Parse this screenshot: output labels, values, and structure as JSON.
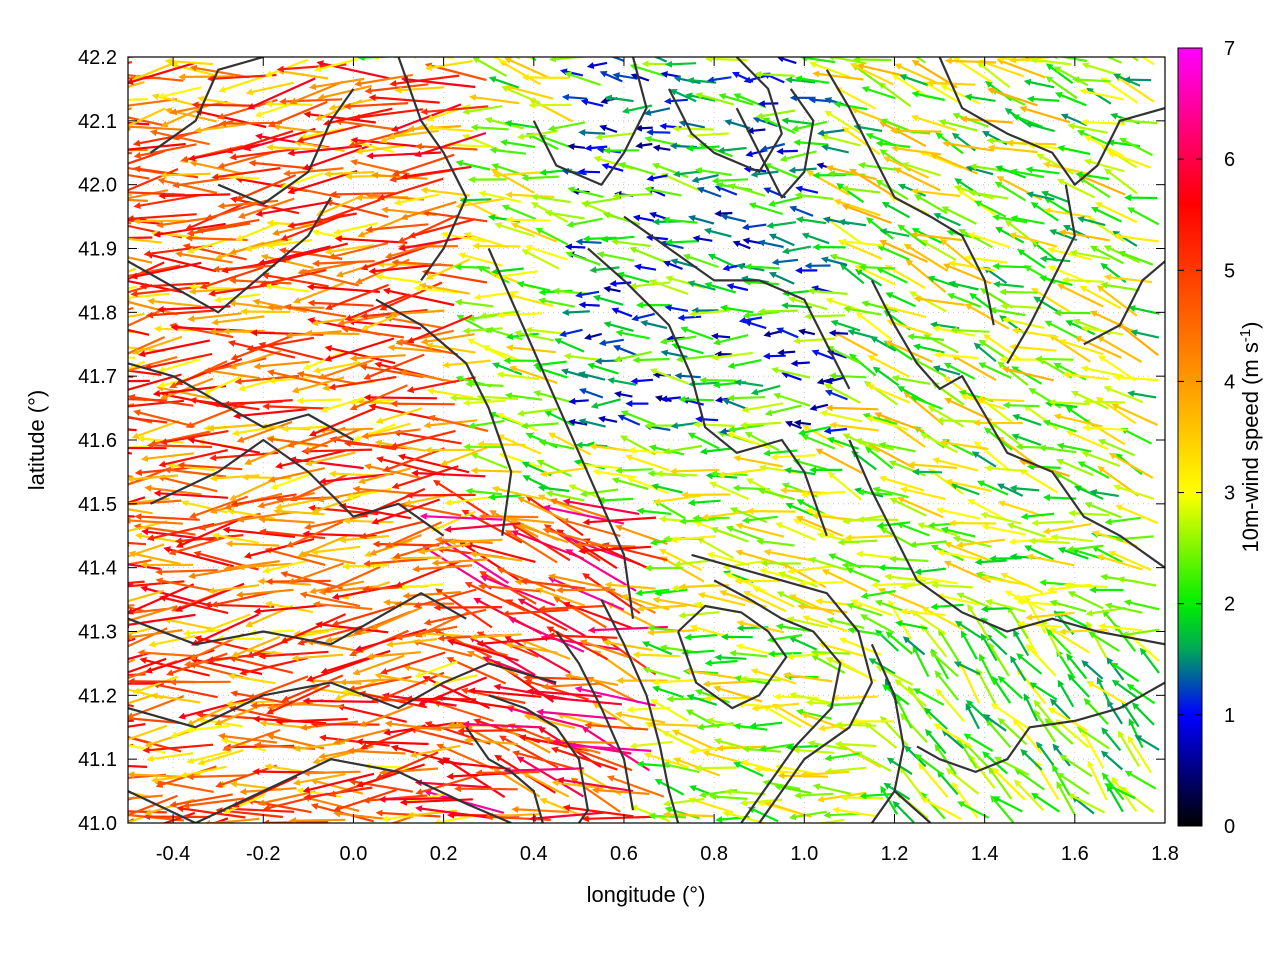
{
  "chart_data": {
    "type": "vector-field",
    "title": "",
    "xlabel": "longitude (°)",
    "ylabel": "latitude (°)",
    "xlim": [
      -0.5,
      1.8
    ],
    "ylim": [
      41.0,
      42.2
    ],
    "x_ticks": [
      "-0.4",
      "-0.2",
      "0.0",
      "0.2",
      "0.4",
      "0.6",
      "0.8",
      "1.0",
      "1.2",
      "1.4",
      "1.6",
      "1.8"
    ],
    "x_tick_values": [
      -0.4,
      -0.2,
      0.0,
      0.2,
      0.4,
      0.6,
      0.8,
      1.0,
      1.2,
      1.4,
      1.6,
      1.8
    ],
    "y_ticks": [
      "41.0",
      "41.1",
      "41.2",
      "41.3",
      "41.4",
      "41.5",
      "41.6",
      "41.7",
      "41.8",
      "41.9",
      "42.0",
      "42.1",
      "42.2"
    ],
    "y_tick_values": [
      41.0,
      41.1,
      41.2,
      41.3,
      41.4,
      41.5,
      41.6,
      41.7,
      41.8,
      41.9,
      42.0,
      42.1,
      42.2
    ],
    "grid": true,
    "colorbar": {
      "label_main": "10m-wind speed (m s",
      "label_sup": "-1",
      "label_close": ")",
      "range": [
        0,
        7
      ],
      "ticks": [
        "0",
        "1",
        "2",
        "3",
        "4",
        "5",
        "6",
        "7"
      ],
      "tick_values": [
        0,
        1,
        2,
        3,
        4,
        5,
        6,
        7
      ],
      "stops": [
        {
          "value": 0,
          "color": "#000000"
        },
        {
          "value": 1,
          "color": "#0000ff"
        },
        {
          "value": 1.6,
          "color": "#00aa55"
        },
        {
          "value": 2,
          "color": "#00ee00"
        },
        {
          "value": 3,
          "color": "#ffff00"
        },
        {
          "value": 4,
          "color": "#ff9900"
        },
        {
          "value": 5.6,
          "color": "#ff0000"
        },
        {
          "value": 7,
          "color": "#ff00ff"
        }
      ]
    },
    "wind_description": "Mostly westward (easterly) 10m winds; strongest (4-7 m/s) in the west and southwest, weak (0-2 m/s) in the north-centre, northwestward flow in the southeast",
    "wind_regions": [
      {
        "lon": [
          -0.5,
          0.3
        ],
        "lat": [
          41.0,
          42.2
        ],
        "speed_range": [
          3.0,
          5.8
        ],
        "direction_deg": 185
      },
      {
        "lon": [
          0.3,
          0.7
        ],
        "lat": [
          41.0,
          41.5
        ],
        "speed_range": [
          3.5,
          6.5
        ],
        "direction_deg": 165
      },
      {
        "lon": [
          0.5,
          1.1
        ],
        "lat": [
          41.6,
          42.2
        ],
        "speed_range": [
          0.5,
          2.8
        ],
        "direction_deg": 175
      },
      {
        "lon": [
          1.1,
          1.8
        ],
        "lat": [
          41.5,
          42.2
        ],
        "speed_range": [
          1.5,
          3.8
        ],
        "direction_deg": 160
      },
      {
        "lon": [
          1.2,
          1.8
        ],
        "lat": [
          41.0,
          41.3
        ],
        "speed_range": [
          1.5,
          3.2
        ],
        "direction_deg": 135
      }
    ],
    "contours": [
      [
        [
          -0.5,
          41.05
        ],
        [
          -0.35,
          41.0
        ],
        [
          -0.2,
          41.05
        ],
        [
          -0.05,
          41.1
        ],
        [
          0.1,
          41.08
        ],
        [
          0.25,
          41.03
        ],
        [
          0.35,
          41.0
        ]
      ],
      [
        [
          -0.5,
          41.18
        ],
        [
          -0.35,
          41.15
        ],
        [
          -0.2,
          41.2
        ],
        [
          -0.05,
          41.22
        ],
        [
          0.1,
          41.18
        ],
        [
          0.2,
          41.22
        ],
        [
          0.3,
          41.25
        ],
        [
          0.45,
          41.22
        ]
      ],
      [
        [
          -0.5,
          41.32
        ],
        [
          -0.35,
          41.28
        ],
        [
          -0.2,
          41.3
        ],
        [
          -0.05,
          41.28
        ],
        [
          0.05,
          41.32
        ],
        [
          0.15,
          41.36
        ],
        [
          0.25,
          41.32
        ]
      ],
      [
        [
          -0.45,
          41.5
        ],
        [
          -0.3,
          41.55
        ],
        [
          -0.2,
          41.6
        ],
        [
          -0.1,
          41.55
        ],
        [
          0.0,
          41.48
        ],
        [
          0.1,
          41.5
        ],
        [
          0.2,
          41.45
        ]
      ],
      [
        [
          -0.5,
          41.72
        ],
        [
          -0.4,
          41.7
        ],
        [
          -0.3,
          41.66
        ],
        [
          -0.2,
          41.62
        ],
        [
          -0.1,
          41.64
        ],
        [
          0.0,
          41.6
        ]
      ],
      [
        [
          -0.5,
          41.88
        ],
        [
          -0.4,
          41.84
        ],
        [
          -0.3,
          41.8
        ],
        [
          -0.2,
          41.86
        ],
        [
          -0.1,
          41.92
        ],
        [
          -0.05,
          41.98
        ]
      ],
      [
        [
          -0.45,
          42.05
        ],
        [
          -0.35,
          42.1
        ],
        [
          -0.3,
          42.18
        ],
        [
          -0.2,
          42.2
        ]
      ],
      [
        [
          -0.3,
          42.0
        ],
        [
          -0.2,
          41.97
        ],
        [
          -0.1,
          42.02
        ],
        [
          -0.05,
          42.1
        ],
        [
          0.0,
          42.15
        ]
      ],
      [
        [
          0.1,
          42.2
        ],
        [
          0.15,
          42.1
        ],
        [
          0.2,
          42.05
        ],
        [
          0.25,
          41.98
        ],
        [
          0.2,
          41.9
        ],
        [
          0.15,
          41.85
        ]
      ],
      [
        [
          0.05,
          41.82
        ],
        [
          0.15,
          41.78
        ],
        [
          0.25,
          41.72
        ],
        [
          0.3,
          41.65
        ],
        [
          0.35,
          41.55
        ],
        [
          0.33,
          41.45
        ]
      ],
      [
        [
          0.3,
          41.9
        ],
        [
          0.35,
          41.82
        ],
        [
          0.4,
          41.74
        ],
        [
          0.45,
          41.66
        ],
        [
          0.5,
          41.58
        ],
        [
          0.55,
          41.5
        ],
        [
          0.6,
          41.42
        ],
        [
          0.62,
          41.32
        ]
      ],
      [
        [
          0.4,
          42.1
        ],
        [
          0.45,
          42.03
        ],
        [
          0.55,
          42.0
        ],
        [
          0.6,
          42.05
        ],
        [
          0.65,
          42.12
        ],
        [
          0.62,
          42.2
        ]
      ],
      [
        [
          0.52,
          41.9
        ],
        [
          0.6,
          41.85
        ],
        [
          0.7,
          41.78
        ],
        [
          0.75,
          41.7
        ],
        [
          0.78,
          41.62
        ],
        [
          0.85,
          41.58
        ],
        [
          0.95,
          41.6
        ],
        [
          1.0,
          41.55
        ],
        [
          1.05,
          41.45
        ]
      ],
      [
        [
          0.6,
          41.95
        ],
        [
          0.7,
          41.9
        ],
        [
          0.8,
          41.85
        ],
        [
          0.9,
          41.85
        ],
        [
          1.0,
          41.82
        ],
        [
          1.05,
          41.75
        ],
        [
          1.1,
          41.68
        ]
      ],
      [
        [
          0.7,
          42.15
        ],
        [
          0.75,
          42.08
        ],
        [
          0.8,
          42.05
        ],
        [
          0.9,
          42.02
        ],
        [
          0.95,
          42.08
        ],
        [
          0.92,
          42.15
        ],
        [
          0.85,
          42.2
        ]
      ],
      [
        [
          0.85,
          42.12
        ],
        [
          0.9,
          42.05
        ],
        [
          0.95,
          41.98
        ],
        [
          1.0,
          42.02
        ],
        [
          1.02,
          42.1
        ],
        [
          0.97,
          42.15
        ]
      ],
      [
        [
          1.05,
          42.18
        ],
        [
          1.1,
          42.12
        ],
        [
          1.15,
          42.05
        ],
        [
          1.2,
          41.98
        ],
        [
          1.28,
          41.95
        ],
        [
          1.35,
          41.92
        ],
        [
          1.4,
          41.85
        ],
        [
          1.42,
          41.78
        ]
      ],
      [
        [
          1.3,
          42.2
        ],
        [
          1.35,
          42.12
        ],
        [
          1.45,
          42.08
        ],
        [
          1.55,
          42.05
        ],
        [
          1.6,
          42.0
        ],
        [
          1.65,
          42.03
        ],
        [
          1.7,
          42.1
        ],
        [
          1.8,
          42.12
        ]
      ],
      [
        [
          1.15,
          41.85
        ],
        [
          1.2,
          41.78
        ],
        [
          1.25,
          41.72
        ],
        [
          1.3,
          41.68
        ],
        [
          1.35,
          41.7
        ],
        [
          1.4,
          41.64
        ],
        [
          1.45,
          41.58
        ],
        [
          1.55,
          41.55
        ],
        [
          1.62,
          41.48
        ],
        [
          1.7,
          41.45
        ],
        [
          1.8,
          41.4
        ]
      ],
      [
        [
          1.1,
          41.6
        ],
        [
          1.15,
          41.52
        ],
        [
          1.2,
          41.45
        ],
        [
          1.25,
          41.38
        ],
        [
          1.35,
          41.33
        ],
        [
          1.45,
          41.3
        ],
        [
          1.55,
          41.32
        ],
        [
          1.65,
          41.3
        ],
        [
          1.8,
          41.28
        ]
      ],
      [
        [
          0.75,
          41.42
        ],
        [
          0.85,
          41.4
        ],
        [
          0.95,
          41.38
        ],
        [
          1.05,
          41.36
        ],
        [
          1.12,
          41.3
        ],
        [
          1.15,
          41.22
        ],
        [
          1.1,
          41.15
        ],
        [
          1.0,
          41.1
        ],
        [
          0.95,
          41.05
        ],
        [
          0.9,
          41.0
        ]
      ],
      [
        [
          0.8,
          41.38
        ],
        [
          0.88,
          41.35
        ],
        [
          0.95,
          41.32
        ],
        [
          1.02,
          41.3
        ],
        [
          1.08,
          41.25
        ],
        [
          1.06,
          41.18
        ],
        [
          0.98,
          41.12
        ],
        [
          0.92,
          41.06
        ],
        [
          0.86,
          41.0
        ]
      ],
      [
        [
          0.72,
          41.3
        ],
        [
          0.78,
          41.34
        ],
        [
          0.86,
          41.33
        ],
        [
          0.92,
          41.3
        ],
        [
          0.96,
          41.26
        ],
        [
          0.9,
          41.2
        ],
        [
          0.84,
          41.18
        ],
        [
          0.76,
          41.22
        ],
        [
          0.72,
          41.3
        ]
      ],
      [
        [
          0.55,
          41.35
        ],
        [
          0.6,
          41.28
        ],
        [
          0.65,
          41.2
        ],
        [
          0.68,
          41.12
        ],
        [
          0.7,
          41.05
        ],
        [
          0.72,
          41.0
        ]
      ],
      [
        [
          0.45,
          41.3
        ],
        [
          0.5,
          41.25
        ],
        [
          0.55,
          41.18
        ],
        [
          0.6,
          41.1
        ],
        [
          0.62,
          41.02
        ]
      ],
      [
        [
          0.3,
          41.2
        ],
        [
          0.38,
          41.18
        ],
        [
          0.45,
          41.15
        ],
        [
          0.5,
          41.1
        ],
        [
          0.52,
          41.02
        ],
        [
          0.5,
          41.0
        ]
      ],
      [
        [
          0.25,
          41.15
        ],
        [
          0.3,
          41.1
        ],
        [
          0.35,
          41.08
        ],
        [
          0.4,
          41.05
        ],
        [
          0.42,
          41.0
        ]
      ],
      [
        [
          1.25,
          41.12
        ],
        [
          1.3,
          41.1
        ],
        [
          1.38,
          41.08
        ],
        [
          1.45,
          41.1
        ],
        [
          1.5,
          41.15
        ],
        [
          1.6,
          41.16
        ],
        [
          1.7,
          41.18
        ],
        [
          1.8,
          41.22
        ]
      ],
      [
        [
          1.2,
          41.05
        ],
        [
          1.28,
          41.0
        ]
      ],
      [
        [
          1.15,
          41.0
        ],
        [
          1.2,
          41.05
        ],
        [
          1.22,
          41.12
        ],
        [
          1.2,
          41.2
        ],
        [
          1.15,
          41.28
        ]
      ],
      [
        [
          1.45,
          41.72
        ],
        [
          1.5,
          41.78
        ],
        [
          1.55,
          41.85
        ],
        [
          1.6,
          41.92
        ],
        [
          1.58,
          42.0
        ]
      ],
      [
        [
          1.62,
          41.75
        ],
        [
          1.7,
          41.78
        ],
        [
          1.75,
          41.85
        ],
        [
          1.8,
          41.88
        ]
      ]
    ]
  }
}
